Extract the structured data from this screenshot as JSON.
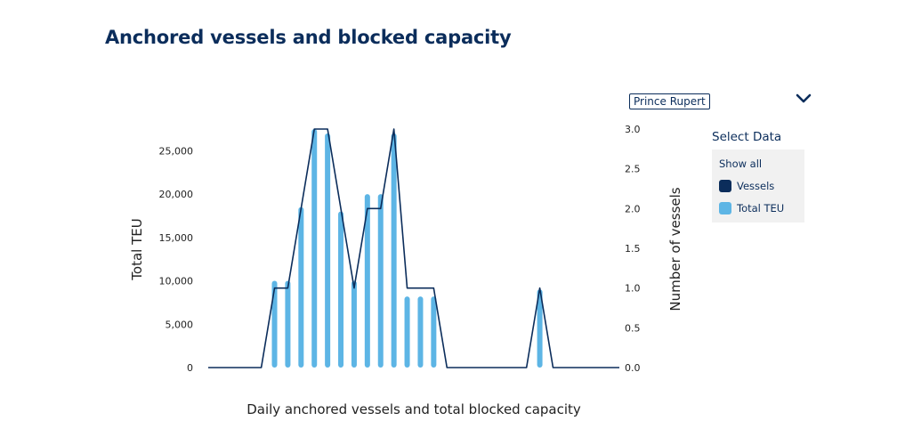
{
  "page": {
    "title": "Anchored vessels and blocked capacity",
    "port_selector": {
      "selected": "Prince Rupert"
    }
  },
  "legend": {
    "title": "Select Data",
    "show_all": "Show all",
    "items": [
      {
        "label": "Vessels",
        "color": "#0b2d5b"
      },
      {
        "label": "Total TEU",
        "color": "#5db5e5"
      }
    ]
  },
  "chart_data": {
    "type": "bar+line",
    "title": "Anchored vessels and blocked capacity",
    "xlabel": "Daily anchored vessels and total blocked capacity",
    "y_left": {
      "label": "Total TEU",
      "ylim": [
        0,
        27500
      ],
      "ticks": [
        0,
        5000,
        10000,
        15000,
        20000,
        25000
      ],
      "tick_labels": [
        "0",
        "5,000",
        "10,000",
        "15,000",
        "20,000",
        "25,000"
      ]
    },
    "y_right": {
      "label": "Number of vessels",
      "ylim": [
        0,
        3
      ],
      "ticks": [
        0,
        0.5,
        1,
        1.5,
        2,
        2.5,
        3
      ],
      "tick_labels": [
        "0.0",
        "0.5",
        "1.0",
        "1.5",
        "2.0",
        "2.5",
        "3.0"
      ]
    },
    "series": [
      {
        "name": "Total TEU",
        "kind": "bar",
        "color": "#5db5e5",
        "values": [
          0,
          0,
          0,
          0,
          0,
          10000,
          10000,
          18500,
          27500,
          27000,
          18000,
          10000,
          20000,
          20000,
          27000,
          8200,
          8200,
          8200,
          0,
          0,
          0,
          0,
          0,
          0,
          0,
          9000,
          0,
          0,
          0,
          0,
          0,
          0
        ]
      },
      {
        "name": "Vessels",
        "kind": "line",
        "color": "#0b2d5b",
        "values": [
          0,
          0,
          0,
          0,
          0,
          1,
          1,
          2,
          3,
          3,
          2,
          1,
          2,
          2,
          3,
          1,
          1,
          1,
          0,
          0,
          0,
          0,
          0,
          0,
          0,
          1,
          0,
          0,
          0,
          0,
          0,
          0
        ]
      }
    ],
    "grid": false,
    "legend_position": "right"
  }
}
